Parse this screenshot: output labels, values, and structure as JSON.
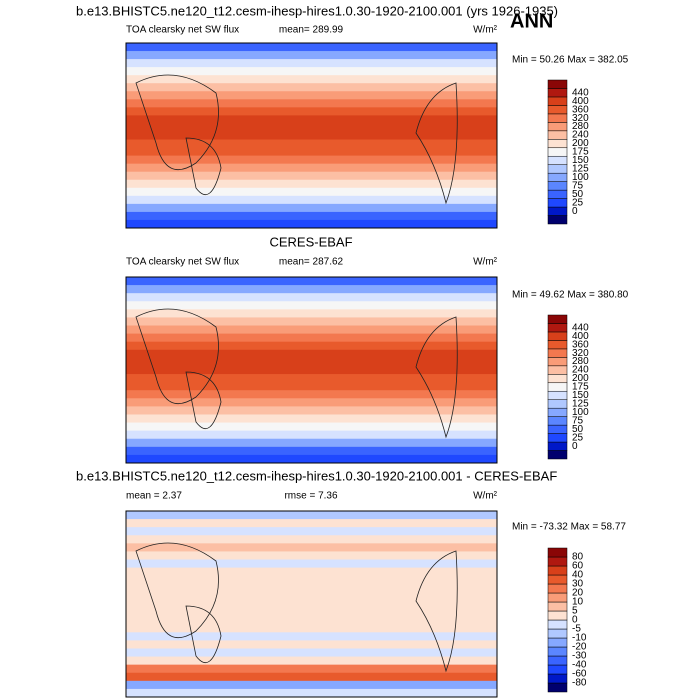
{
  "header": {
    "title": "b.e13.BHISTC5.ne120_t12.cesm-ihesp-hires1.0.30-1920-2100.001 (yrs 1926-1935)",
    "season": "ANN"
  },
  "panels": [
    {
      "left": "TOA clearsky net SW flux",
      "center": "mean= 289.99",
      "right": "W/m²",
      "minmax": "Min =  50.26 Max = 382.05",
      "levels": [
        0,
        25,
        50,
        75,
        100,
        125,
        150,
        175,
        200,
        240,
        280,
        320,
        360,
        400,
        440
      ],
      "colors": [
        "#00006e",
        "#0018c8",
        "#1f48ff",
        "#3a64ff",
        "#5b86ff",
        "#86a8ff",
        "#b0c8ff",
        "#d6e2ff",
        "#f6f6f6",
        "#fde2d2",
        "#fcbfa4",
        "#f99c78",
        "#f3784f",
        "#e85a2c",
        "#d8401a",
        "#b01810",
        "#8a0606"
      ]
    },
    {
      "title": "CERES-EBAF",
      "left": "TOA clearsky net SW flux",
      "center": "mean= 287.62",
      "right": "W/m²",
      "minmax": "Min =  49.62 Max = 380.80",
      "levels": [
        0,
        25,
        50,
        75,
        100,
        125,
        150,
        175,
        200,
        240,
        280,
        320,
        360,
        400,
        440
      ],
      "colors": [
        "#00006e",
        "#0018c8",
        "#1f48ff",
        "#3a64ff",
        "#5b86ff",
        "#86a8ff",
        "#b0c8ff",
        "#d6e2ff",
        "#f6f6f6",
        "#fde2d2",
        "#fcbfa4",
        "#f99c78",
        "#f3784f",
        "#e85a2c",
        "#d8401a",
        "#b01810",
        "#8a0606"
      ]
    },
    {
      "title": "b.e13.BHISTC5.ne120_t12.cesm-ihesp-hires1.0.30-1920-2100.001 - CERES-EBAF",
      "left": "mean =  2.37",
      "center": "rmse =  7.36",
      "right": "W/m²",
      "minmax": "Min = -73.32 Max =  58.77",
      "levels": [
        -80,
        -60,
        -40,
        -30,
        -20,
        -10,
        -5,
        0,
        5,
        10,
        20,
        30,
        40,
        60,
        80
      ],
      "colors": [
        "#00006e",
        "#0018c8",
        "#1f48ff",
        "#3a64ff",
        "#5b86ff",
        "#86a8ff",
        "#b0c8ff",
        "#d6e2ff",
        "#fde2d2",
        "#fcbfa4",
        "#f99c78",
        "#f3784f",
        "#e85a2c",
        "#d8401a",
        "#b01810",
        "#8a0606"
      ]
    }
  ]
}
